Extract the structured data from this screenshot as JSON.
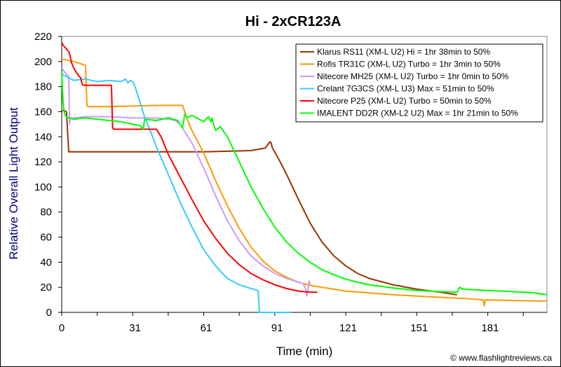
{
  "chart_data": {
    "type": "line",
    "title": "Hi - 2xCR123A",
    "xlabel": "Time (min)",
    "ylabel": "Relative Overall Light Output",
    "xlim": [
      0,
      205
    ],
    "ylim": [
      0,
      220
    ],
    "xticks": [
      0,
      31,
      61,
      91,
      121,
      151,
      181
    ],
    "yticks": [
      0,
      20,
      40,
      60,
      80,
      100,
      120,
      140,
      160,
      180,
      200,
      220
    ],
    "grid": false,
    "legend_position": "top-right",
    "background": "#ffffff",
    "series": [
      {
        "name": "Klarus RS11 (XM-L U2) Hi = 1hr 38min to 50%",
        "color": "#993300",
        "x": [
          0,
          1,
          2,
          2.6,
          3,
          10,
          30,
          60,
          80,
          86,
          88,
          88.5,
          89,
          90,
          92,
          95,
          100,
          105,
          110,
          115,
          120,
          125,
          130,
          140,
          150,
          160,
          167
        ],
        "y": [
          161,
          161,
          160,
          140,
          128,
          128,
          128,
          128,
          129,
          131,
          136,
          135,
          131,
          128,
          121,
          110,
          90,
          71,
          56,
          45,
          37,
          31,
          27,
          22,
          18.5,
          16,
          14
        ]
      },
      {
        "name": "Rofis TR31C (XM-L U2) Turbo = 1hr 3min to 50%",
        "color": "#ff9900",
        "x": [
          0,
          5,
          10,
          10.7,
          11,
          20,
          40,
          51,
          52,
          53,
          55,
          60,
          65,
          70,
          75,
          80,
          85,
          90,
          95,
          100,
          105,
          110,
          120,
          130,
          140,
          150,
          160,
          170,
          175,
          178,
          178.5,
          179,
          180,
          190,
          205
        ],
        "y": [
          202,
          200,
          197,
          165,
          164,
          164,
          165,
          165,
          160,
          154,
          145,
          127,
          105,
          85,
          67,
          52,
          41,
          33,
          28,
          24,
          21.5,
          20,
          17,
          15.5,
          14,
          13,
          12,
          11,
          10.5,
          10,
          5,
          10,
          10,
          9.5,
          9
        ]
      },
      {
        "name": "Nitecore MH25 (XM-L U2) Turbo = 1hr 0min to 50%",
        "color": "#cc99ff",
        "x": [
          0,
          1,
          2,
          3,
          3.3,
          3.6,
          5,
          10,
          20,
          30,
          40,
          45,
          48,
          50,
          55,
          60,
          65,
          70,
          75,
          80,
          85,
          90,
          95,
          100,
          102,
          103,
          103.5,
          104,
          104.5,
          105
        ],
        "y": [
          195,
          192,
          190,
          188,
          150,
          155,
          155,
          156,
          156,
          155,
          155,
          154,
          153,
          150,
          135,
          115,
          93,
          73,
          57,
          45,
          37,
          31,
          27,
          24,
          23,
          19,
          13,
          18,
          25,
          22
        ]
      },
      {
        "name": "Crelant 7G3CS (XM-L U3) Max = 51min to 50%",
        "color": "#33ccff",
        "x": [
          0,
          2,
          5,
          10,
          15,
          20,
          25,
          27,
          28,
          29,
          30,
          31,
          33,
          35,
          38,
          40,
          45,
          50,
          55,
          60,
          65,
          70,
          75,
          80,
          82,
          83,
          83.5,
          84,
          90,
          97
        ],
        "y": [
          190,
          188,
          185,
          186,
          184,
          185,
          184,
          186,
          183,
          185,
          184,
          180,
          168,
          156,
          142,
          132,
          110,
          88,
          68,
          50,
          37,
          27,
          22,
          19,
          18,
          17,
          0,
          0,
          0,
          0
        ]
      },
      {
        "name": "Nitecore P25 (XM-L U2) Turbo = 50min to 50%",
        "color": "#ff0000",
        "x": [
          0,
          1,
          2,
          3,
          3.5,
          4,
          5,
          7,
          8,
          8.5,
          9,
          10,
          15,
          20,
          21,
          21.5,
          22,
          30,
          40,
          42,
          45,
          50,
          55,
          60,
          65,
          70,
          75,
          80,
          85,
          90,
          95,
          100,
          105,
          108
        ],
        "y": [
          215,
          212,
          210,
          208,
          205,
          200,
          195,
          189,
          187,
          183,
          181,
          181,
          181,
          181,
          181,
          147,
          146,
          146,
          146,
          140,
          126,
          108,
          90,
          73,
          59,
          47,
          38,
          31,
          26,
          22,
          19,
          17,
          16,
          16
        ]
      },
      {
        "name": "IMALENT DD2R (XM-L2 U2) Max = 1hr 21min to 50%",
        "color": "#00ff00",
        "x": [
          0,
          0.5,
          1,
          1.5,
          2,
          3,
          5,
          10,
          15,
          20,
          25,
          30,
          33,
          34.5,
          35,
          40,
          45,
          49,
          50,
          51,
          52,
          53,
          55,
          60,
          62,
          63,
          63.5,
          64,
          65,
          67,
          70,
          75,
          80,
          85,
          90,
          95,
          100,
          105,
          110,
          115,
          120,
          125,
          130,
          140,
          150,
          160,
          167,
          168,
          169,
          170,
          180,
          190,
          200,
          205
        ],
        "y": [
          192,
          170,
          160,
          157,
          156,
          155,
          154,
          155,
          154,
          153,
          152,
          150,
          149,
          146,
          154,
          153,
          155,
          153,
          150,
          147,
          158,
          155,
          157,
          152,
          156,
          152,
          155,
          151,
          145,
          148,
          140,
          120,
          100,
          83,
          68,
          56,
          47,
          40,
          34,
          30,
          26.5,
          24,
          22,
          19.5,
          17.5,
          16.5,
          16,
          20,
          19,
          18.5,
          17.5,
          16.5,
          15.5,
          14
        ]
      }
    ],
    "copyright": "© www.flashlightreviews.ca"
  }
}
